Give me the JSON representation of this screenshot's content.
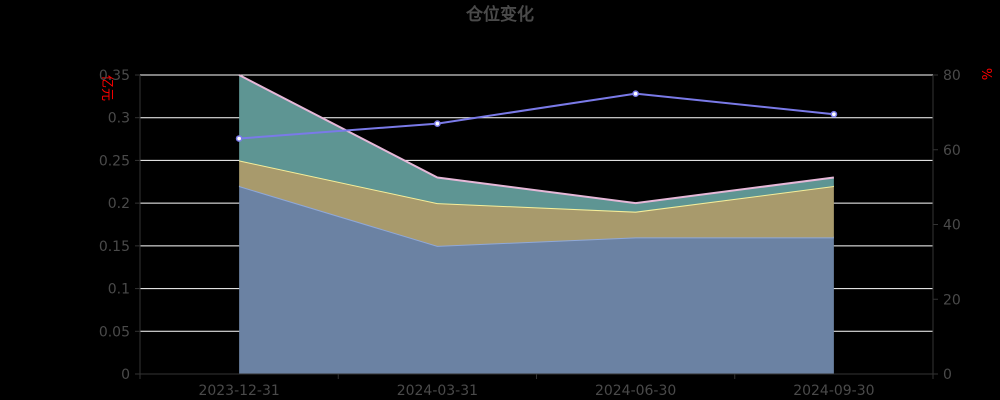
{
  "colors": {
    "background": "#000000",
    "title": "#4a4a4a",
    "tick_label": "#4a4a4a",
    "axis_unit": "#ff0000",
    "grid": "#ffffff",
    "axis_line": "#333333",
    "area_bottom_fill": "#6b82a3",
    "area_bottom_line": "#8fa8d8",
    "area_middle_fill": "#a89a6c",
    "area_middle_line": "#f5ee9a",
    "area_top_fill": "#5e9593",
    "area_top_line": "#e6b8d8",
    "line_series": "#7a7ae8",
    "line_point": "#ffffff"
  },
  "chart_data": {
    "type": "area",
    "title": "仓位变化",
    "categories": [
      "2023-12-31",
      "2024-03-31",
      "2024-06-30",
      "2024-09-30"
    ],
    "y_left": {
      "label": "亿元",
      "range": [
        0,
        0.35
      ],
      "ticks": [
        "0",
        "0.05",
        "0.1",
        "0.15",
        "0.2",
        "0.25",
        "0.3",
        "0.35"
      ],
      "tick_values": [
        0,
        0.05,
        0.1,
        0.15,
        0.2,
        0.25,
        0.3,
        0.35
      ]
    },
    "y_right": {
      "label": "%",
      "range": [
        0,
        80
      ],
      "ticks": [
        "0",
        "20",
        "40",
        "60",
        "80"
      ],
      "tick_values": [
        0,
        20,
        40,
        60,
        80
      ]
    },
    "grid": true,
    "legend": "none",
    "stacked_areas": [
      {
        "values": [
          0.22,
          0.15,
          0.16,
          0.16
        ]
      },
      {
        "values": [
          0.03,
          0.05,
          0.03,
          0.06
        ]
      },
      {
        "values": [
          0.1,
          0.03,
          0.01,
          0.01
        ]
      }
    ],
    "line_series": {
      "axis": "right",
      "values": [
        63,
        67,
        75,
        69.5
      ]
    }
  }
}
